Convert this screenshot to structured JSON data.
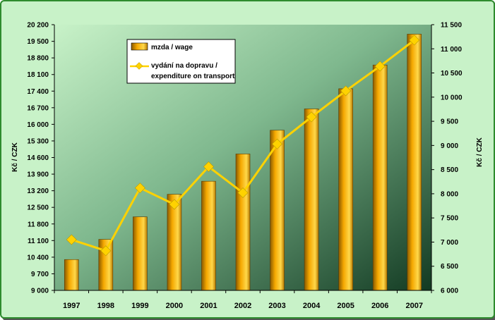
{
  "chart_data": {
    "type": "bar-line",
    "title": "",
    "categories": [
      "1997",
      "1998",
      "1999",
      "2000",
      "2001",
      "2002",
      "2003",
      "2004",
      "2005",
      "2006",
      "2007"
    ],
    "series": [
      {
        "name": "mzda / wage",
        "type": "bar",
        "axis": "left",
        "values": [
          10300,
          11150,
          12100,
          13050,
          13600,
          14750,
          15750,
          16650,
          17500,
          18500,
          19800
        ]
      },
      {
        "name": "vydání na dopravu / expenditure on transport",
        "type": "line",
        "axis": "right",
        "values": [
          7050,
          6820,
          8120,
          7780,
          8560,
          8020,
          9030,
          9590,
          10130,
          10640,
          11180
        ]
      }
    ],
    "ylabel_left": "Kč / CZK",
    "ylabel_right": "Kč / CZK",
    "ylim_left": [
      9000,
      20200
    ],
    "ylim_right": [
      6000,
      11500
    ],
    "yticks_left": [
      "9 000",
      "9 700",
      "10 400",
      "11 100",
      "11 800",
      "12 500",
      "13 200",
      "13 900",
      "14 600",
      "15 300",
      "16 000",
      "16 700",
      "17 400",
      "18 100",
      "18 800",
      "19 500",
      "20 200"
    ],
    "yticks_right": [
      "6 000",
      "6 500",
      "7 000",
      "7 500",
      "8 000",
      "8 500",
      "9 000",
      "9 500",
      "10 000",
      "10 500",
      "11 000",
      "11 500"
    ],
    "legend": {
      "position": "top-left",
      "items": [
        "mzda / wage",
        "vydání na dopravu /",
        "expenditure on transport"
      ]
    },
    "grid": false,
    "colors": {
      "bar": "#f5a800",
      "line": "#ffd200",
      "background": "#c8f2c8"
    }
  }
}
